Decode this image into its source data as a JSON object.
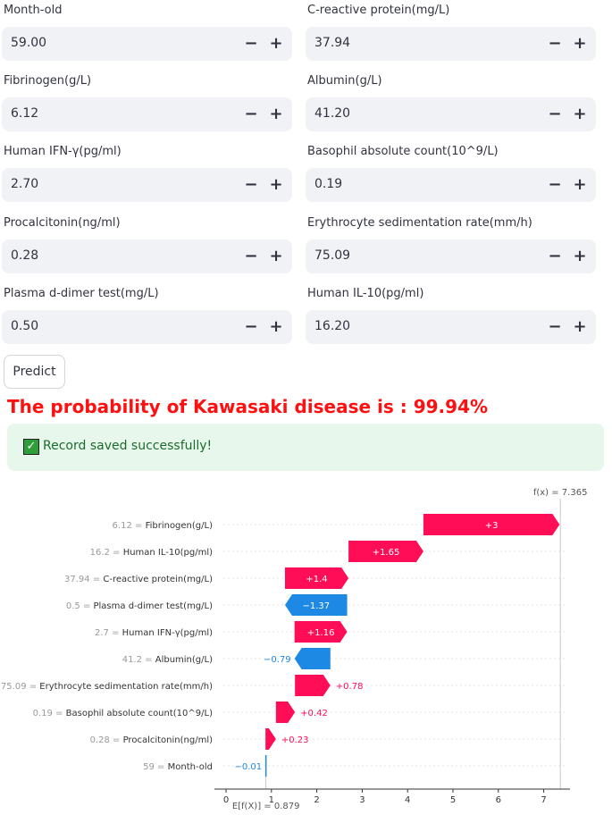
{
  "inputs": [
    {
      "label": "Month-old",
      "value": "59.00"
    },
    {
      "label": "C-reactive protein(mg/L)",
      "value": "37.94"
    },
    {
      "label": "Fibrinogen(g/L)",
      "value": "6.12"
    },
    {
      "label": "Albumin(g/L)",
      "value": "41.20"
    },
    {
      "label": "Human IFN-γ(pg/ml)",
      "value": "2.70"
    },
    {
      "label": "Basophil absolute count(10^9/L)",
      "value": "0.19"
    },
    {
      "label": "Procalcitonin(ng/ml)",
      "value": "0.28"
    },
    {
      "label": "Erythrocyte sedimentation rate(mm/h)",
      "value": "75.09"
    },
    {
      "label": "Plasma d-dimer test(mg/L)",
      "value": "0.50"
    },
    {
      "label": "Human IL-10(pg/ml)",
      "value": "16.20"
    }
  ],
  "stepper": {
    "minus": "−",
    "plus": "+"
  },
  "predict_label": "Predict",
  "result_text": "The probability of Kawasaki disease is : 99.94%",
  "success": {
    "icon": "check-box-icon",
    "check": "✓",
    "message": "Record saved successfully!"
  },
  "colors": {
    "positive": "#ff0d57",
    "negative": "#1e88e5",
    "result": "#ff0f0f"
  },
  "chart_data": {
    "type": "waterfall",
    "base_value": 0.879,
    "base_label": "E[f(X)] = 0.879",
    "output_value": 7.365,
    "output_label": "f(x) = 7.365",
    "xlim": [
      -0.2,
      7.5
    ],
    "xticks": [
      0,
      1,
      2,
      3,
      4,
      5,
      6,
      7
    ],
    "features": [
      {
        "value": "6.12",
        "name": "Fibrinogen(g/L)",
        "contribution": 3.0,
        "label": "+3"
      },
      {
        "value": "16.2",
        "name": "Human IL-10(pg/ml)",
        "contribution": 1.65,
        "label": "+1.65"
      },
      {
        "value": "37.94",
        "name": "C-reactive protein(mg/L)",
        "contribution": 1.4,
        "label": "+1.4"
      },
      {
        "value": "0.5",
        "name": "Plasma d-dimer test(mg/L)",
        "contribution": -1.37,
        "label": "−1.37"
      },
      {
        "value": "2.7",
        "name": "Human IFN-γ(pg/ml)",
        "contribution": 1.16,
        "label": "+1.16"
      },
      {
        "value": "41.2",
        "name": "Albumin(g/L)",
        "contribution": -0.79,
        "label": "−0.79"
      },
      {
        "value": "75.09",
        "name": "Erythrocyte sedimentation rate(mm/h)",
        "contribution": 0.78,
        "label": "+0.78"
      },
      {
        "value": "0.19",
        "name": "Basophil absolute count(10^9/L)",
        "contribution": 0.42,
        "label": "+0.42"
      },
      {
        "value": "0.28",
        "name": "Procalcitonin(ng/ml)",
        "contribution": 0.23,
        "label": "+0.23"
      },
      {
        "value": "59",
        "name": "Month-old",
        "contribution": -0.01,
        "label": "−0.01"
      }
    ]
  }
}
